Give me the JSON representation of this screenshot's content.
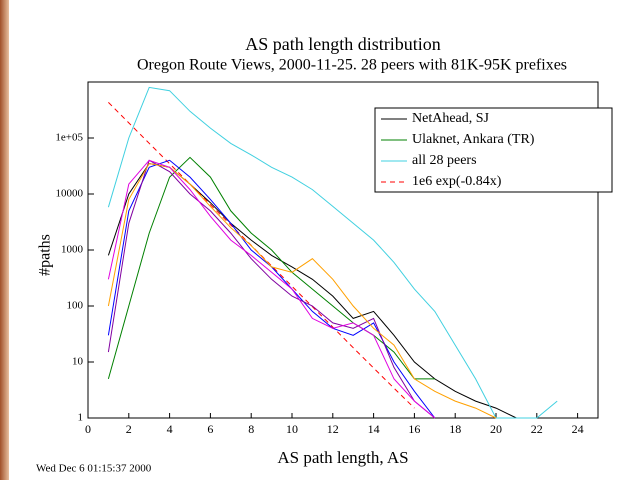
{
  "chart_data": {
    "type": "line",
    "title": "AS path length distribution",
    "subtitle": "Oregon Route Views, 2000-11-25. 28 peers with 81K-95K  prefixes",
    "x_label": "AS path length, AS",
    "y_label": "#paths",
    "footer": "Wed Dec  6 01:15:37 2000",
    "ylog": true,
    "grid": false,
    "legend": "upper right",
    "x": [
      1,
      2,
      3,
      4,
      5,
      6,
      7,
      8,
      9,
      10,
      11,
      12,
      13,
      14,
      15,
      16,
      17,
      18,
      19,
      20,
      21,
      22,
      23
    ],
    "xlim": [
      0,
      25
    ],
    "xticks": [
      0,
      2,
      4,
      6,
      8,
      10,
      12,
      14,
      16,
      18,
      20,
      22,
      24
    ],
    "ylim": [
      1,
      1000000
    ],
    "yticks": [
      1,
      10,
      100,
      1000,
      10000,
      {
        "value": 100000,
        "label": "1e+05"
      }
    ],
    "series": [
      {
        "name": "NetAhead, SJ",
        "color": "#000000",
        "values": [
          800,
          10000,
          35000,
          30000,
          15000,
          7000,
          3000,
          1500,
          800,
          500,
          300,
          150,
          60,
          80,
          30,
          10,
          5,
          3,
          2,
          1.5,
          1,
          null,
          null
        ]
      },
      {
        "name": "Ulaknet, Ankara (TR)",
        "color": "#008000",
        "values": [
          5,
          100,
          2000,
          20000,
          45000,
          20000,
          5000,
          2000,
          1000,
          400,
          200,
          100,
          50,
          30,
          15,
          5,
          5,
          null,
          null,
          null,
          null,
          null,
          null
        ]
      },
      {
        "name": "all 28 peers",
        "color": "#40d0e0",
        "values": [
          5800,
          100000,
          800000,
          700000,
          300000,
          150000,
          80000,
          50000,
          30000,
          20000,
          12000,
          6000,
          3000,
          1500,
          600,
          200,
          80,
          20,
          5,
          1,
          1,
          1,
          2
        ]
      },
      {
        "name": "1e6 exp(-0.84x)",
        "color": "#ff0000",
        "dashed": true,
        "values": [
          431711,
          186374,
          80460,
          34735,
          14996,
          6474,
          2795,
          1207,
          521,
          225,
          97,
          42,
          18,
          7.8,
          3.4,
          1.5,
          null,
          null,
          null,
          null,
          null,
          null,
          null
        ]
      },
      {
        "color": "#0000ff",
        "values": [
          30,
          5000,
          30000,
          40000,
          20000,
          8000,
          3000,
          1000,
          500,
          200,
          80,
          40,
          30,
          50,
          10,
          3,
          1,
          null,
          null,
          null,
          null,
          null,
          null
        ]
      },
      {
        "color": "#8000a0",
        "values": [
          15,
          3000,
          40000,
          25000,
          10000,
          5000,
          2000,
          700,
          300,
          150,
          100,
          50,
          40,
          60,
          8,
          2,
          1,
          null,
          null,
          null,
          null,
          null,
          null
        ]
      },
      {
        "color": "#ffa000",
        "values": [
          100,
          8000,
          35000,
          30000,
          15000,
          6000,
          2500,
          1200,
          500,
          400,
          700,
          300,
          100,
          40,
          20,
          5,
          3,
          2,
          1.5,
          1,
          null,
          null,
          null
        ]
      },
      {
        "color": "#e000e0",
        "values": [
          300,
          15000,
          40000,
          30000,
          12000,
          4000,
          1500,
          800,
          400,
          200,
          60,
          40,
          50,
          30,
          5,
          2,
          1,
          null,
          null,
          null,
          null,
          null,
          null
        ]
      }
    ]
  }
}
